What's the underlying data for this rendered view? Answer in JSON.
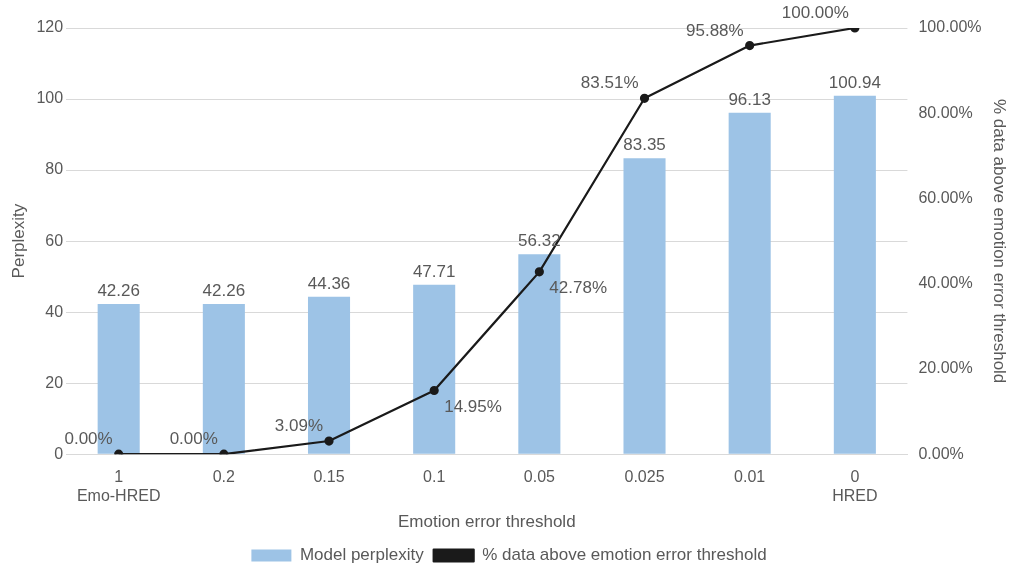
{
  "chart_data": {
    "type": "bar",
    "xlabel": "Emotion error threshold",
    "ylabel": "Perplexity",
    "y2label": "% data above emotion error threshold",
    "categories": [
      "1\nEmo-HRED",
      "0.2",
      "0.15",
      "0.1",
      "0.05",
      "0.025",
      "0.01",
      "0\nHRED"
    ],
    "series": [
      {
        "name": "Model perplexity",
        "color": "#9dc3e6",
        "values": [
          42.26,
          42.26,
          44.36,
          47.71,
          56.32,
          83.35,
          96.13,
          100.94
        ],
        "value_labels": [
          "42.26",
          "42.26",
          "44.36",
          "47.71",
          "56.32",
          "83.35",
          "96.13",
          "100.94"
        ]
      },
      {
        "name": "% data above emotion error threshold",
        "type": "line",
        "axis": "y2",
        "color": "#1a1a1a",
        "values": [
          0,
          0,
          3.09,
          14.95,
          42.78,
          83.51,
          95.88,
          100
        ],
        "value_labels": [
          "0.00%",
          "0.00%",
          "3.09%",
          "14.95%",
          "42.78%",
          "83.51%",
          "95.88%",
          "100.00%"
        ]
      }
    ],
    "ylim": [
      0,
      120
    ],
    "yticks": [
      0,
      20,
      40,
      60,
      80,
      100,
      120
    ],
    "y2lim": [
      0,
      100
    ],
    "y2ticks": [
      {
        "value": 0,
        "label": "0.00%"
      },
      {
        "value": 20,
        "label": "20.00%"
      },
      {
        "value": 40,
        "label": "40.00%"
      },
      {
        "value": 60,
        "label": "60.00%"
      },
      {
        "value": 80,
        "label": "80.00%"
      },
      {
        "value": 100,
        "label": "100.00%"
      }
    ],
    "grid": "y",
    "legend": "bottom",
    "marker": "circle",
    "line_style": "solid"
  }
}
